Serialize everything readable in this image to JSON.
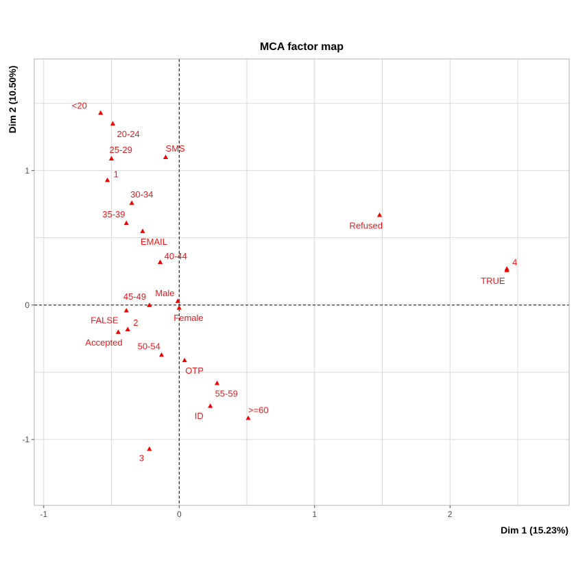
{
  "chart_data": {
    "type": "scatter",
    "title": "MCA factor map",
    "xlabel": "Dim 1 (15.23%)",
    "ylabel": "Dim 2 (10.50%)",
    "xlim": [
      -1.07,
      2.88
    ],
    "ylim": [
      -1.49,
      1.83
    ],
    "xticks": [
      -1,
      0,
      1,
      2
    ],
    "yticks": [
      -1,
      0,
      1
    ],
    "reference_lines": {
      "x": 0,
      "y": 0,
      "style": "dashed"
    },
    "grid": true,
    "marker_color": "#ee0000",
    "label_color": "#e41a1c",
    "points": [
      {
        "label": "<20",
        "x": -0.58,
        "y": 1.43,
        "anchor": "start",
        "dx": -42,
        "dy": -6
      },
      {
        "label": "20-24",
        "x": -0.49,
        "y": 1.35,
        "anchor": "start",
        "dx": 6,
        "dy": 20
      },
      {
        "label": "25-29",
        "x": -0.5,
        "y": 1.09,
        "anchor": "start",
        "dx": -3,
        "dy": -8
      },
      {
        "label": "SMS",
        "x": -0.1,
        "y": 1.1,
        "anchor": "start",
        "dx": 0,
        "dy": -8
      },
      {
        "label": "1",
        "x": -0.53,
        "y": 0.93,
        "anchor": "start",
        "dx": 9,
        "dy": -4
      },
      {
        "label": "30-34",
        "x": -0.35,
        "y": 0.76,
        "anchor": "start",
        "dx": -2,
        "dy": -8
      },
      {
        "label": "35-39",
        "x": -0.39,
        "y": 0.61,
        "anchor": "start",
        "dx": -35,
        "dy": -8
      },
      {
        "label": "EMAIL",
        "x": -0.27,
        "y": 0.55,
        "anchor": "start",
        "dx": -3,
        "dy": 20
      },
      {
        "label": "40-44",
        "x": -0.14,
        "y": 0.32,
        "anchor": "start",
        "dx": 6,
        "dy": -4
      },
      {
        "label": "Refused",
        "x": 1.48,
        "y": 0.67,
        "anchor": "start",
        "dx": -44,
        "dy": 20
      },
      {
        "label": "4",
        "x": 2.42,
        "y": 0.27,
        "anchor": "start",
        "dx": 8,
        "dy": -5
      },
      {
        "label": "TRUE",
        "x": 2.42,
        "y": 0.26,
        "anchor": "start",
        "dx": -38,
        "dy": 20
      },
      {
        "label": "45-49",
        "x": -0.22,
        "y": 0.0,
        "anchor": "start",
        "dx": -38,
        "dy": -8
      },
      {
        "label": "Male",
        "x": -0.01,
        "y": 0.03,
        "anchor": "start",
        "dx": -33,
        "dy": -7
      },
      {
        "label": "Female",
        "x": 0.0,
        "y": -0.02,
        "anchor": "start",
        "dx": -8,
        "dy": 19
      },
      {
        "label": "FALSE",
        "x": -0.39,
        "y": -0.04,
        "anchor": "start",
        "dx": -52,
        "dy": 19
      },
      {
        "label": "2",
        "x": -0.38,
        "y": -0.18,
        "anchor": "start",
        "dx": 8,
        "dy": -5
      },
      {
        "label": "Accepted",
        "x": -0.45,
        "y": -0.2,
        "anchor": "start",
        "dx": -48,
        "dy": 20
      },
      {
        "label": "50-54",
        "x": -0.13,
        "y": -0.37,
        "anchor": "start",
        "dx": -35,
        "dy": -8
      },
      {
        "label": "OTP",
        "x": 0.04,
        "y": -0.41,
        "anchor": "start",
        "dx": 1,
        "dy": 20
      },
      {
        "label": "55-59",
        "x": 0.28,
        "y": -0.58,
        "anchor": "start",
        "dx": -3,
        "dy": 20
      },
      {
        "label": ">=60",
        "x": 0.51,
        "y": -0.84,
        "anchor": "start",
        "dx": 0,
        "dy": -7
      },
      {
        "label": "ID",
        "x": 0.23,
        "y": -0.75,
        "anchor": "start",
        "dx": -23,
        "dy": 19
      },
      {
        "label": "3",
        "x": -0.22,
        "y": -1.07,
        "anchor": "start",
        "dx": -15,
        "dy": 18
      }
    ]
  }
}
